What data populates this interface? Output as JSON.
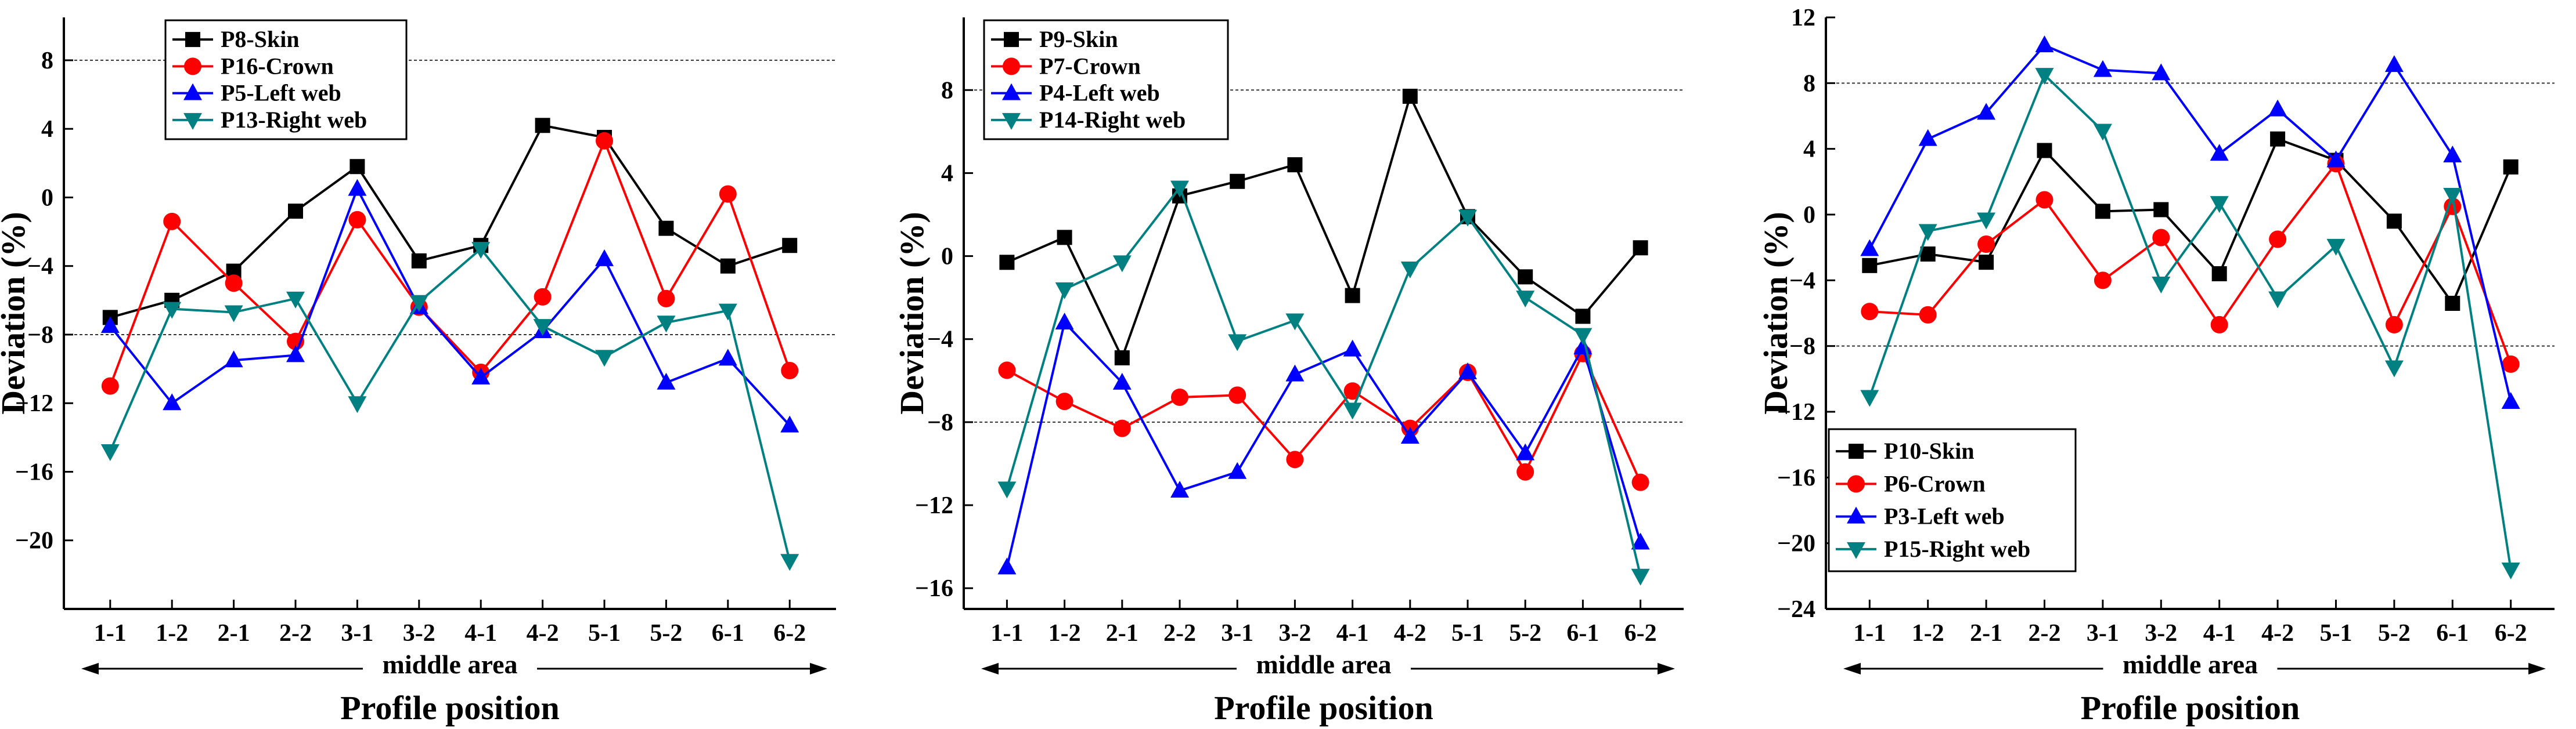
{
  "chart_data": [
    {
      "type": "line",
      "ylabel": "Deviation  (%)",
      "xlabel": "Profile position",
      "area_label": "middle area",
      "categories": [
        "1-1",
        "1-2",
        "2-1",
        "2-2",
        "3-1",
        "3-2",
        "4-1",
        "4-2",
        "5-1",
        "5-2",
        "6-1",
        "6-2"
      ],
      "yticks": [
        8,
        4,
        0,
        -4,
        -8,
        -12,
        -16,
        -20
      ],
      "ylim": [
        -24,
        10.5
      ],
      "reference_lines": [
        8,
        -8
      ],
      "legend_position": "top-left",
      "series": [
        {
          "name": "P8-Skin",
          "color": "#000000",
          "marker": "square",
          "values": [
            -7.0,
            -6.0,
            -4.3,
            -0.8,
            1.8,
            -3.7,
            -2.8,
            4.2,
            3.5,
            -1.8,
            -4.0,
            -2.8
          ]
        },
        {
          "name": "P16-Crown",
          "color": "#ff0000",
          "marker": "circle",
          "values": [
            -11.0,
            -1.4,
            -5.0,
            -8.4,
            -1.3,
            -6.4,
            -10.2,
            -5.8,
            3.3,
            -5.9,
            0.2,
            -10.1
          ]
        },
        {
          "name": "P5-Left web",
          "color": "#0000ff",
          "marker": "triangle-up",
          "values": [
            -7.5,
            -12.0,
            -9.5,
            -9.2,
            0.5,
            -6.4,
            -10.5,
            -7.8,
            -3.6,
            -10.8,
            -9.4,
            -13.3
          ]
        },
        {
          "name": "P13-Right web",
          "color": "#008080",
          "marker": "triangle-down",
          "values": [
            -14.8,
            -6.5,
            -6.7,
            -5.9,
            -12.0,
            -6.1,
            -3.0,
            -7.5,
            -9.3,
            -7.3,
            -6.6,
            -21.2
          ]
        }
      ]
    },
    {
      "type": "line",
      "ylabel": "Deviation  (%)",
      "xlabel": "Profile position",
      "area_label": "middle area",
      "categories": [
        "1-1",
        "1-2",
        "2-1",
        "2-2",
        "3-1",
        "3-2",
        "4-1",
        "4-2",
        "5-1",
        "5-2",
        "6-1",
        "6-2"
      ],
      "yticks": [
        8,
        4,
        0,
        -4,
        -8,
        -12,
        -16
      ],
      "ylim": [
        -17,
        11.5
      ],
      "reference_lines": [
        8,
        -8
      ],
      "legend_position": "top-left",
      "series": [
        {
          "name": "P9-Skin",
          "color": "#000000",
          "marker": "square",
          "values": [
            -0.3,
            0.9,
            -4.9,
            2.9,
            3.6,
            4.4,
            -1.9,
            7.7,
            1.9,
            -1.0,
            -2.9,
            0.4
          ]
        },
        {
          "name": "P7-Crown",
          "color": "#ff0000",
          "marker": "circle",
          "values": [
            -5.5,
            -7.0,
            -8.3,
            -6.8,
            -6.7,
            -9.8,
            -6.5,
            -8.3,
            -5.6,
            -10.4,
            -4.7,
            -10.9
          ]
        },
        {
          "name": "P4-Left web",
          "color": "#0000ff",
          "marker": "triangle-up",
          "values": [
            -15.0,
            -3.2,
            -6.1,
            -11.3,
            -10.4,
            -5.7,
            -4.5,
            -8.7,
            -5.6,
            -9.5,
            -4.4,
            -13.8
          ]
        },
        {
          "name": "P14-Right web",
          "color": "#008080",
          "marker": "triangle-down",
          "values": [
            -11.2,
            -1.6,
            -0.3,
            3.3,
            -4.1,
            -3.1,
            -7.4,
            -0.6,
            1.9,
            -2.0,
            -3.8,
            -15.4
          ]
        }
      ]
    },
    {
      "type": "line",
      "ylabel": "Deviation  (%)",
      "xlabel": "Profile position",
      "area_label": "middle area",
      "categories": [
        "1-1",
        "1-2",
        "2-1",
        "2-2",
        "3-1",
        "3-2",
        "4-1",
        "4-2",
        "5-1",
        "5-2",
        "6-1",
        "6-2"
      ],
      "yticks": [
        12,
        8,
        4,
        0,
        -4,
        -8,
        -12,
        -16,
        -20,
        -24
      ],
      "ylim": [
        -24,
        12
      ],
      "reference_lines": [
        8,
        -8
      ],
      "legend_position": "bottom-left",
      "series": [
        {
          "name": "P10-Skin",
          "color": "#000000",
          "marker": "square",
          "values": [
            -3.1,
            -2.4,
            -2.9,
            3.9,
            0.2,
            0.3,
            -3.6,
            4.6,
            3.3,
            -0.4,
            -5.4,
            2.9
          ]
        },
        {
          "name": "P6-Crown",
          "color": "#ff0000",
          "marker": "circle",
          "values": [
            -5.9,
            -6.1,
            -1.8,
            0.9,
            -4.0,
            -1.4,
            -6.7,
            -1.5,
            3.1,
            -6.7,
            0.5,
            -9.1
          ]
        },
        {
          "name": "P3-Left web",
          "color": "#0000ff",
          "marker": "triangle-up",
          "values": [
            -2.1,
            4.6,
            6.2,
            10.3,
            8.8,
            8.6,
            3.7,
            6.4,
            3.3,
            9.1,
            3.6,
            -11.4
          ]
        },
        {
          "name": "P15-Right web",
          "color": "#008080",
          "marker": "triangle-down",
          "values": [
            -11.1,
            -1.0,
            -0.3,
            8.5,
            5.1,
            -4.2,
            0.7,
            -5.1,
            -1.9,
            -9.3,
            1.2,
            -21.6
          ]
        }
      ]
    }
  ]
}
